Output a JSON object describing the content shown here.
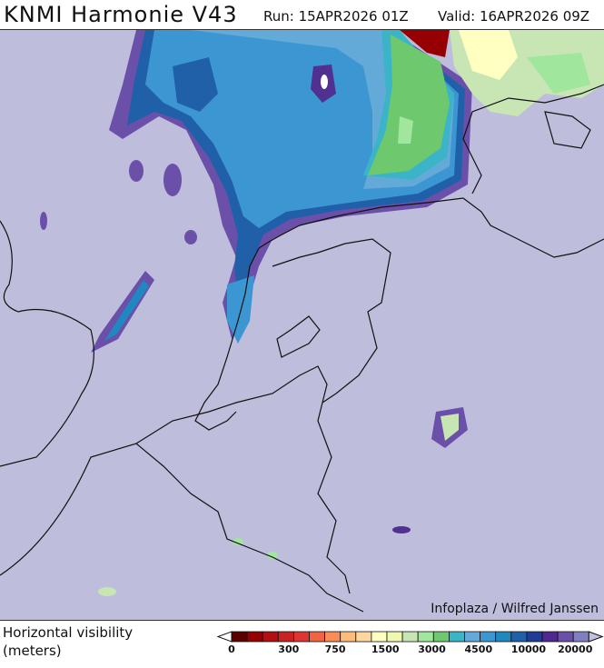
{
  "header": {
    "title": "KNMI Harmonie V43",
    "run": "Run: 15APR2026 01Z",
    "valid": "Valid: 16APR2026 09Z"
  },
  "map": {
    "background_color": "#bebddc",
    "credit": "Infoplaza / Wilfred Janssen"
  },
  "legend": {
    "label_line1": "Horizontal visibility",
    "label_line2": "(meters)",
    "colors": [
      "#5a0000",
      "#960000",
      "#b01010",
      "#c82222",
      "#e03434",
      "#f06444",
      "#fa8c58",
      "#fcbc7c",
      "#fdd6a0",
      "#ffffc2",
      "#eef8b0",
      "#c8e6b4",
      "#a0e69c",
      "#6ec86e",
      "#3cb4c8",
      "#64aad8",
      "#3c96d2",
      "#2088c0",
      "#2060a8",
      "#203c96",
      "#502890",
      "#6a50a8",
      "#8080c0"
    ],
    "under_color": "#ffffff",
    "over_color": "#c0c0e0",
    "ticks": [
      {
        "label": "0",
        "index": 0
      },
      {
        "label": "300",
        "index": 3
      },
      {
        "label": "750",
        "index": 6
      },
      {
        "label": "1500",
        "index": 9
      },
      {
        "label": "3000",
        "index": 12
      },
      {
        "label": "4500",
        "index": 15
      },
      {
        "label": "10000",
        "index": 18
      },
      {
        "label": "20000",
        "index": 21
      }
    ]
  }
}
